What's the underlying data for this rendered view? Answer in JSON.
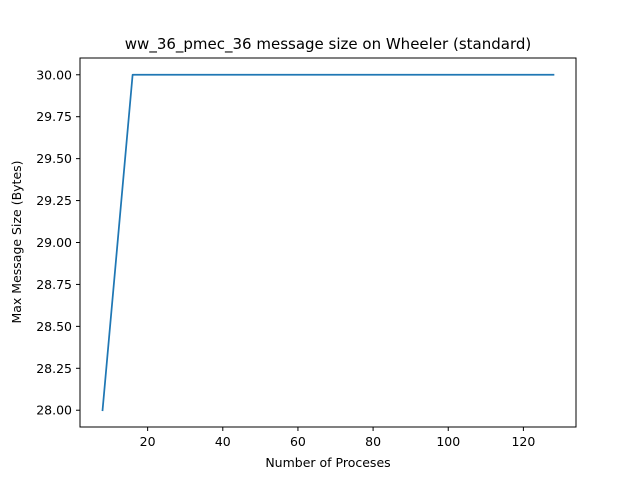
{
  "chart_data": {
    "type": "line",
    "title": "ww_36_pmec_36 message size on Wheeler (standard)",
    "xlabel": "Number of Proceses",
    "ylabel": "Max Message Size (Bytes)",
    "xlim": [
      2,
      134
    ],
    "ylim": [
      27.9,
      30.1
    ],
    "xticks": [
      20,
      40,
      60,
      80,
      100,
      120
    ],
    "yticks": [
      28.0,
      28.25,
      28.5,
      28.75,
      29.0,
      29.25,
      29.5,
      29.75,
      30.0
    ],
    "grid": false,
    "series": [
      {
        "x": [
          8,
          16,
          32,
          64,
          128
        ],
        "y": [
          28,
          30,
          30,
          30,
          30
        ],
        "color": "#1f77b4"
      }
    ]
  }
}
